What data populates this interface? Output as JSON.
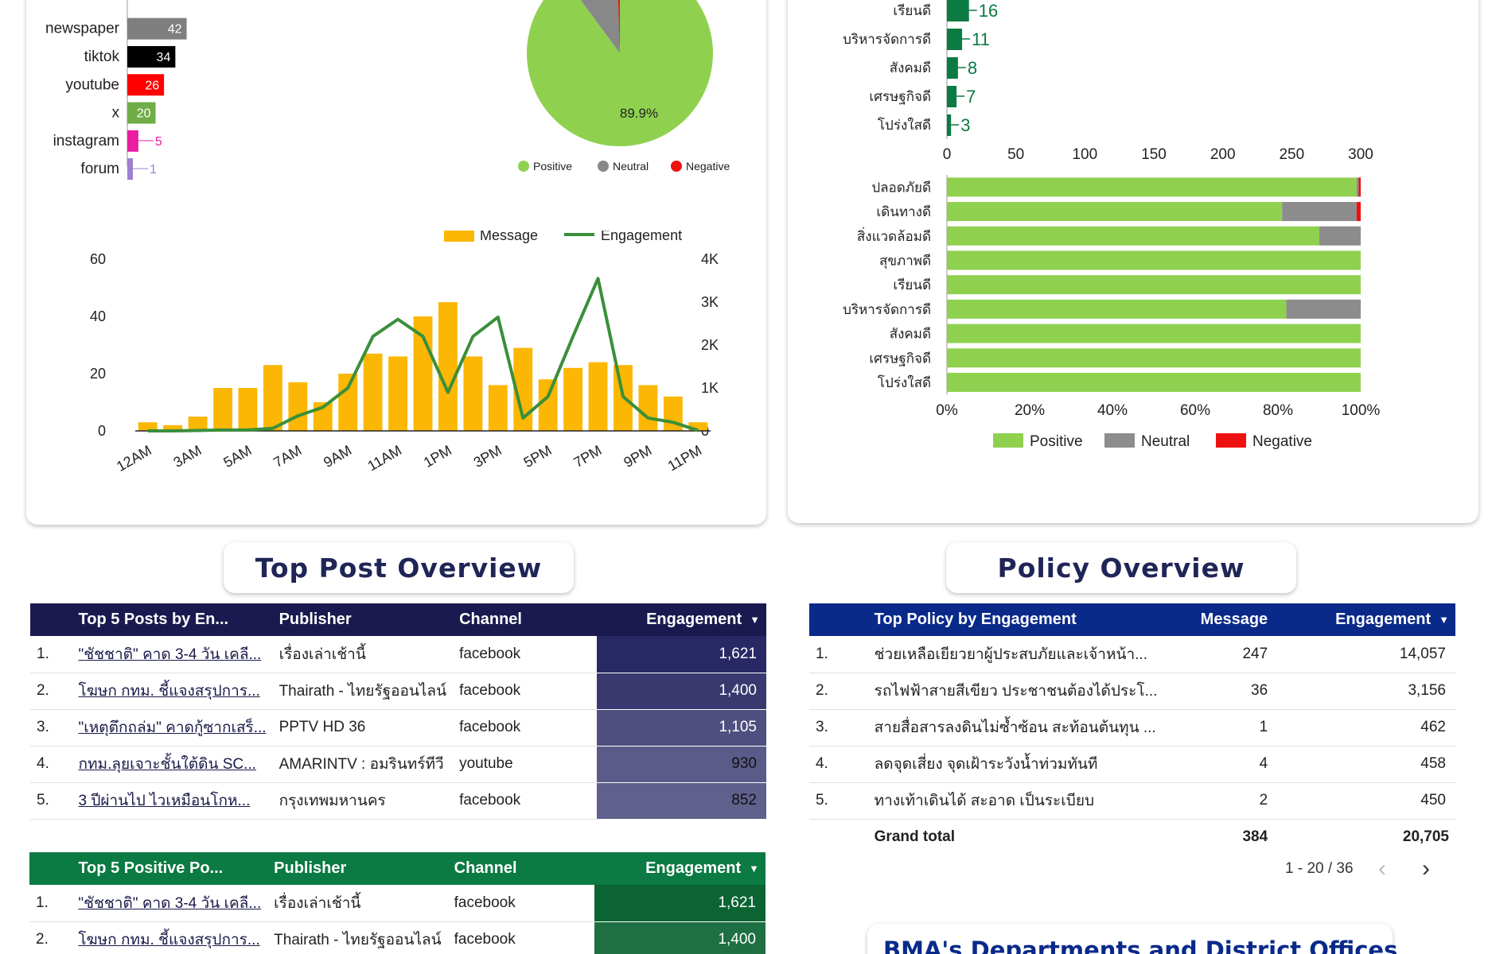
{
  "channel_chart": {
    "type": "bar",
    "categories": [
      "newspaper",
      "tiktok",
      "youtube",
      "x",
      "instagram",
      "forum"
    ],
    "values": [
      42,
      34,
      26,
      20,
      5,
      1
    ],
    "colors": [
      "#7f7f7f",
      "#000000",
      "#ff0000",
      "#70ad47",
      "#e91ea0",
      "#9c7fd0"
    ],
    "xticks": [
      "0",
      "50",
      "100",
      "150",
      "200"
    ],
    "xlim": [
      0,
      200
    ]
  },
  "sentiment_pie": {
    "type": "pie",
    "slices": [
      {
        "name": "Positive",
        "value": 89.9,
        "color": "#8fd14f"
      },
      {
        "name": "Neutral",
        "value": 9.6,
        "color": "#888888"
      },
      {
        "name": "Negative",
        "value": 0.5,
        "color": "#ee1111"
      }
    ],
    "label": "89.9%"
  },
  "hourly_chart": {
    "type": "bar",
    "legend": [
      "Message",
      "Engagement"
    ],
    "bar_color": "#fbb703",
    "line_color": "#3a8f3a",
    "messages": [
      3,
      2,
      5,
      15,
      15,
      23,
      17,
      10,
      20,
      27,
      26,
      40,
      45,
      26,
      16,
      29,
      18,
      22,
      24,
      23,
      16,
      12,
      3
    ],
    "engagement": [
      0,
      0,
      10,
      20,
      20,
      60,
      350,
      550,
      1000,
      2200,
      2600,
      2200,
      900,
      2200,
      2650,
      300,
      800,
      2200,
      3550,
      800,
      300,
      200,
      10
    ],
    "x_labels": [
      "12AM",
      "3AM",
      "5AM",
      "7AM",
      "9AM",
      "11AM",
      "1PM",
      "3PM",
      "5PM",
      "7PM",
      "9PM",
      "11PM"
    ],
    "y_left_ticks": [
      "0",
      "20",
      "40",
      "60"
    ],
    "y_right_ticks": [
      "0",
      "1K",
      "2K",
      "3K",
      "4K"
    ],
    "y_left_max": 60,
    "y_right_max": 4000
  },
  "policy_count_chart": {
    "type": "bar",
    "categories": [
      "เรียนดี",
      "บริหารจัดการดี",
      "สังคมดี",
      "เศรษฐกิจดี",
      "โปร่งใสดี"
    ],
    "values": [
      16,
      11,
      8,
      7,
      3
    ],
    "color": "#0b7a43",
    "xticks": [
      "0",
      "50",
      "100",
      "150",
      "200",
      "250",
      "300"
    ],
    "xlim": [
      0,
      300
    ]
  },
  "policy_sentiment_chart": {
    "type": "bar",
    "categories": [
      "ปลอดภัยดี",
      "เดินทางดี",
      "สิ่งแวดล้อมดี",
      "สุขภาพดี",
      "เรียนดี",
      "บริหารจัดการดี",
      "สังคมดี",
      "เศรษฐกิจดี",
      "โปร่งใสดี"
    ],
    "series": [
      {
        "name": "Positive",
        "values": [
          99,
          81,
          90,
          100,
          100,
          82,
          100,
          100,
          100
        ],
        "color": "#8fd14f"
      },
      {
        "name": "Neutral",
        "values": [
          0.5,
          18,
          10,
          0,
          0,
          18,
          0,
          0,
          0
        ],
        "color": "#8c8c8c"
      },
      {
        "name": "Negative",
        "values": [
          0.5,
          1,
          0,
          0,
          0,
          0,
          0,
          0,
          0
        ],
        "color": "#ee1111"
      }
    ],
    "xticks": [
      "0%",
      "20%",
      "40%",
      "60%",
      "80%",
      "100%"
    ]
  },
  "top_post_title": "Top Post Overview",
  "policy_title": "Policy Overview",
  "top_posts": {
    "header_color": "#1a1a50",
    "columns": [
      "Top 5 Posts by En...",
      "Publisher",
      "Channel",
      "Engagement"
    ],
    "rows": [
      {
        "n": "1.",
        "post": "\"ชัชชาติ\" คาด 3-4 วัน เคลี...",
        "publisher": "เรื่องเล่าเช้านี้",
        "channel": "facebook",
        "engagement": "1,621",
        "fill": 1.0
      },
      {
        "n": "2.",
        "post": "โฆษก กทม. ชี้แจงสรุปการ...",
        "publisher": "Thairath - ไทยรัฐออนไลน์",
        "channel": "facebook",
        "engagement": "1,400",
        "fill": 0.86
      },
      {
        "n": "3.",
        "post": "\"เหตุตึกถล่ม\" คาดกู้ซากเสร็...",
        "publisher": "PPTV HD 36",
        "channel": "facebook",
        "engagement": "1,105",
        "fill": 0.68
      },
      {
        "n": "4.",
        "post": "กทม.ลุยเจาะชั้นใต้ดิน SC...",
        "publisher": "AMARINTV : อมรินทร์ทีวี",
        "channel": "youtube",
        "engagement": "930",
        "fill": 0.57
      },
      {
        "n": "5.",
        "post": "3 ปีผ่านไป ไวเหมือนโกห...",
        "publisher": "กรุงเทพมหานคร",
        "channel": "facebook",
        "engagement": "852",
        "fill": 0.52
      }
    ]
  },
  "top_positive_posts": {
    "header_color": "#0b7a43",
    "columns": [
      "Top 5 Positive Po...",
      "Publisher",
      "Channel",
      "Engagement"
    ],
    "rows": [
      {
        "n": "1.",
        "post": "\"ชัชชาติ\" คาด 3-4 วัน เคลี...",
        "publisher": "เรื่องเล่าเช้านี้",
        "channel": "facebook",
        "engagement": "1,621",
        "fill": 1.0
      },
      {
        "n": "2.",
        "post": "โฆษก กทม. ชี้แจงสรุปการ...",
        "publisher": "Thairath - ไทยรัฐออนไลน์",
        "channel": "facebook",
        "engagement": "1,400",
        "fill": 0.86
      }
    ]
  },
  "policy_table": {
    "header_color": "#0a2a8a",
    "columns": [
      "Top Policy by Engagement",
      "Message",
      "Engagement"
    ],
    "rows": [
      {
        "n": "1.",
        "policy": "ช่วยเหลือเยียวยาผู้ประสบภัยและเจ้าหน้า...",
        "message": "247",
        "engagement": "14,057"
      },
      {
        "n": "2.",
        "policy": "รถไฟฟ้าสายสีเขียว ประชาชนต้องได้ประโ...",
        "message": "36",
        "engagement": "3,156"
      },
      {
        "n": "3.",
        "policy": "สายสื่อสารลงดินไม่ซ้ำซ้อน สะท้อนต้นทุน ...",
        "message": "1",
        "engagement": "462"
      },
      {
        "n": "4.",
        "policy": "ลดจุดเสี่ยง จุดเฝ้าระวังน้ำท่วมทันที",
        "message": "4",
        "engagement": "458"
      },
      {
        "n": "5.",
        "policy": "ทางเท้าเดินได้ สะอาด เป็นระเบียบ",
        "message": "2",
        "engagement": "450"
      }
    ],
    "grand_total_label": "Grand total",
    "grand_total_message": "384",
    "grand_total_engagement": "20,705",
    "pagination": "1 - 20 / 36"
  },
  "bma_title": "BMA's Departments and District Offices"
}
